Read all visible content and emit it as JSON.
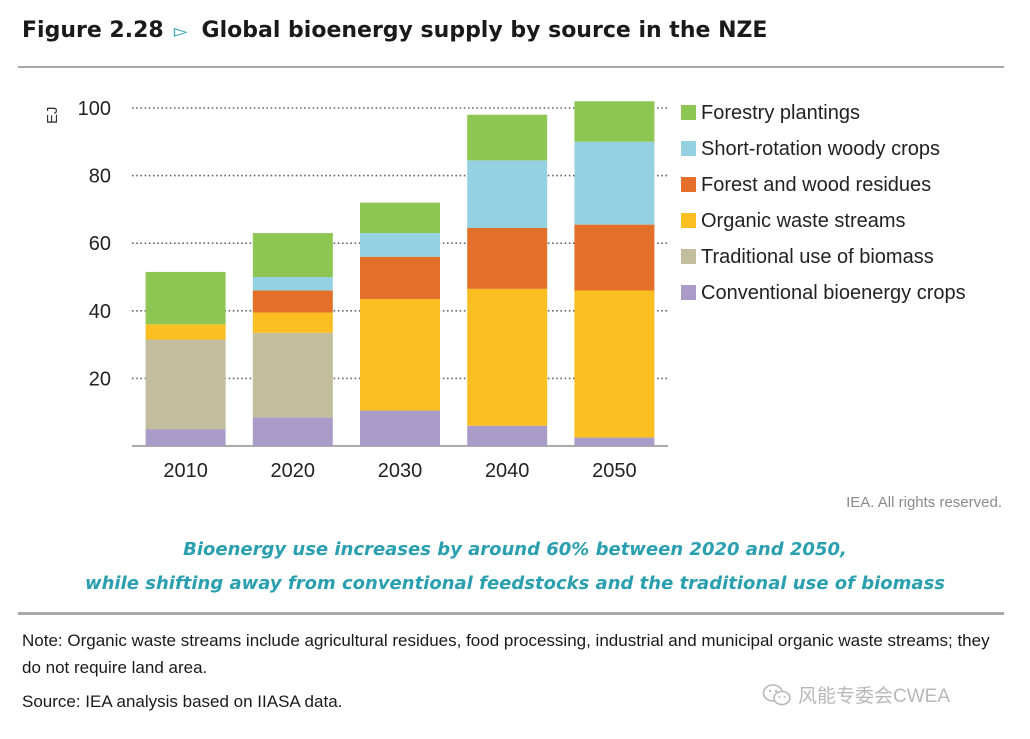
{
  "header": {
    "figure_number": "Figure 2.28",
    "title": "Global bioenergy supply by source in the NZE"
  },
  "rights": "IEA. All rights reserved.",
  "subtitle": {
    "line1": "Bioenergy use increases by around 60% between 2020 and 2050,",
    "line2": "while shifting away from conventional feedstocks and the traditional use of biomass"
  },
  "note": "Note: Organic waste streams include agricultural residues, food processing, industrial and municipal organic waste streams; they do not require land area.",
  "source": "Source: IEA analysis based on IIASA data.",
  "watermark": {
    "text": "风能专委会CWEA",
    "icon": "wechat-icon"
  },
  "colors": {
    "accent": "#2a9fb0",
    "conventional": "#a99cc8",
    "traditional": "#c2bd9c",
    "organic": "#fcbf21",
    "forest_residues": "#e2702a",
    "srwc": "#95d1e0",
    "forestry": "#8dc653"
  },
  "chart_data": {
    "type": "bar",
    "stacked": true,
    "ylabel": "EJ",
    "ylim": [
      0,
      100
    ],
    "yticks": [
      20,
      40,
      60,
      80,
      100
    ],
    "grid": "dotted horizontal",
    "legend_position": "right",
    "categories": [
      "2010",
      "2020",
      "2030",
      "2040",
      "2050"
    ],
    "series": [
      {
        "name": "Conventional bioenergy crops",
        "color": "#a99cc8",
        "values": [
          5,
          8.5,
          10.5,
          6,
          2.5
        ]
      },
      {
        "name": "Traditional use of biomass",
        "color": "#c2bd9c",
        "values": [
          26.5,
          25,
          0,
          0,
          0
        ]
      },
      {
        "name": "Organic waste streams",
        "color": "#fcbf21",
        "values": [
          4.5,
          6,
          33,
          40.5,
          43.5
        ]
      },
      {
        "name": "Forest and wood residues",
        "color": "#e2702a",
        "values": [
          0,
          6.5,
          12.5,
          18,
          19.5
        ]
      },
      {
        "name": "Short-rotation woody crops",
        "color": "#95d1e0",
        "values": [
          0,
          4,
          7,
          20,
          24.5
        ]
      },
      {
        "name": "Forestry plantings",
        "color": "#8dc653",
        "values": [
          15.5,
          13,
          9,
          13.5,
          12
        ]
      }
    ]
  }
}
